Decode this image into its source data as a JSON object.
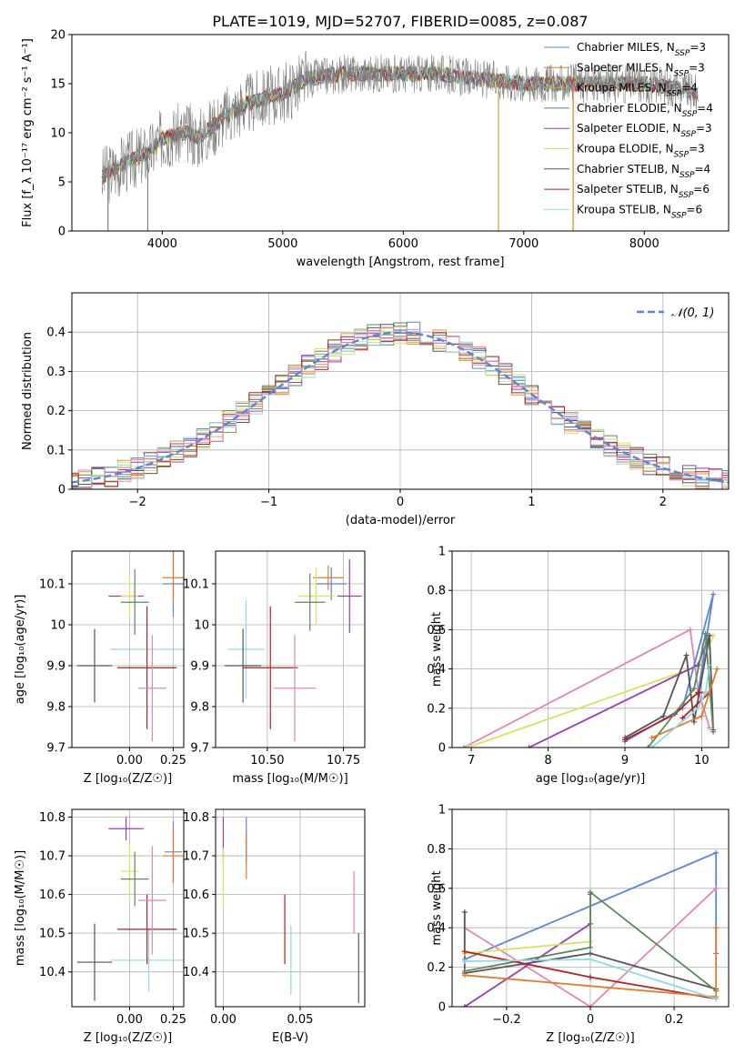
{
  "figure": {
    "title": "PLATE=1019, MJD=52707, FIBERID=0085, z=0.087"
  },
  "colors": {
    "Chabrier MILES": "#5B86D6",
    "Salpeter MILES": "#E07B2A",
    "Kroupa MILES": "#C9A13A",
    "Chabrier ELODIE": "#5A8A5A",
    "Salpeter ELODIE": "#9A3DB0",
    "Kroupa ELODIE": "#D7E35A",
    "Chabrier STELIB": "#555555",
    "Salpeter STELIB": "#B22222",
    "Kroupa STELIB": "#8FD9E6",
    "extra_pink": "#E088B8",
    "data": "#808080"
  },
  "chart_data": [
    {
      "id": "spectrum",
      "type": "line",
      "title": "PLATE=1019, MJD=52707, FIBERID=0085, z=0.087",
      "xlabel": "wavelength [Angstrom, rest frame]",
      "ylabel": "Flux [f_λ 10⁻¹⁷ erg cm⁻² s⁻¹ A⁻¹]",
      "xlim": [
        3250,
        8700
      ],
      "ylim": [
        0,
        20
      ],
      "xticks": [
        4000,
        5000,
        6000,
        7000,
        8000
      ],
      "yticks": [
        0,
        5,
        10,
        15,
        20
      ],
      "legend_position": "top-right",
      "legend": [
        "Chabrier MILES, N_SSP=3",
        "Salpeter MILES, N_SSP=3",
        "Kroupa MILES, N_SSP=4",
        "Chabrier ELODIE, N_SSP=4",
        "Salpeter ELODIE, N_SSP=3",
        "Kroupa ELODIE, N_SSP=3",
        "Chabrier STELIB, N_SSP=4",
        "Salpeter STELIB, N_SSP=6",
        "Kroupa STELIB, N_SSP=6"
      ],
      "data_continuum": [
        [
          3500,
          5.5
        ],
        [
          3700,
          7
        ],
        [
          3900,
          8
        ],
        [
          4000,
          9.5
        ],
        [
          4200,
          10
        ],
        [
          4300,
          9.5
        ],
        [
          4500,
          11.5
        ],
        [
          4700,
          13
        ],
        [
          5000,
          14
        ],
        [
          5200,
          15.5
        ],
        [
          5500,
          16
        ],
        [
          6000,
          16
        ],
        [
          6300,
          16
        ],
        [
          6600,
          15.5
        ],
        [
          7000,
          15
        ],
        [
          7300,
          15
        ],
        [
          7700,
          15
        ],
        [
          8000,
          15
        ],
        [
          8300,
          14.5
        ],
        [
          8450,
          14
        ]
      ],
      "spikes": [
        {
          "x": 3550,
          "y": 0
        },
        {
          "x": 3880,
          "y": 0
        },
        {
          "x": 6790,
          "y": 0
        },
        {
          "x": 7410,
          "y": 0
        }
      ]
    },
    {
      "id": "residuals",
      "type": "line",
      "xlabel": "(data-model)/error",
      "ylabel": "Normed distribution",
      "xlim": [
        -2.5,
        2.5
      ],
      "ylim": [
        0,
        0.5
      ],
      "xticks": [
        -2,
        -1,
        0,
        1,
        2
      ],
      "yticks": [
        0,
        0.1,
        0.2,
        0.3,
        0.4
      ],
      "legend": [
        "𝒩(0, 1)"
      ],
      "legend_position": "top-right",
      "grid": true
    },
    {
      "id": "age_vs_Z",
      "type": "scatter",
      "xlabel": "Z [log₁₀(Z/Z☉)]",
      "ylabel": "age  [log₁₀(age/yr)]",
      "xlim": [
        -0.33,
        0.31
      ],
      "ylim": [
        9.7,
        10.18
      ],
      "xticks": [
        0.0,
        0.25
      ],
      "xticklabels": [
        "0.00",
        "0.25"
      ],
      "yticks": [
        9.7,
        9.8,
        9.9,
        10.0,
        10.1
      ],
      "grid": true,
      "points": [
        {
          "model": "Chabrier MILES",
          "x": 0.25,
          "xerr": 0.06,
          "y": 10.1,
          "yerr": 0.08
        },
        {
          "model": "Salpeter MILES",
          "x": 0.25,
          "xerr": 0.06,
          "y": 10.115,
          "yerr": 0.06
        },
        {
          "model": "Salpeter ELODIE",
          "x": -0.02,
          "xerr": 0.1,
          "y": 10.07,
          "yerr": 0.0
        },
        {
          "model": "Kroupa ELODIE",
          "x": 0.0,
          "xerr": 0.05,
          "y": 10.07,
          "yerr": 0.05
        },
        {
          "model": "Chabrier ELODIE",
          "x": 0.03,
          "xerr": 0.08,
          "y": 10.055,
          "yerr": 0.08
        },
        {
          "model": "Kroupa STELIB",
          "x": 0.11,
          "xerr": 0.22,
          "y": 9.94,
          "yerr": 0.0
        },
        {
          "model": "Chabrier STELIB",
          "x": -0.2,
          "xerr": 0.1,
          "y": 9.9,
          "yerr": 0.09
        },
        {
          "model": "Salpeter STELIB",
          "x": 0.1,
          "xerr": 0.17,
          "y": 9.895,
          "yerr": 0.15
        },
        {
          "model": "extra_pink",
          "x": 0.13,
          "xerr": 0.08,
          "y": 9.845,
          "yerr": 0.13
        }
      ]
    },
    {
      "id": "age_vs_mass",
      "type": "scatter",
      "xlabel": "mass [log₁₀(M/M☉)]",
      "xlim": [
        10.33,
        10.82
      ],
      "ylim": [
        9.7,
        10.18
      ],
      "xticks": [
        10.5,
        10.75
      ],
      "xticklabels": [
        "10.50",
        "10.75"
      ],
      "yticks": [
        9.7,
        9.8,
        9.9,
        10.0,
        10.1
      ],
      "grid": true,
      "points": [
        {
          "model": "Chabrier MILES",
          "x": 10.71,
          "xerr": 0.05,
          "y": 10.1,
          "yerr": 0.04
        },
        {
          "model": "Salpeter MILES",
          "x": 10.7,
          "xerr": 0.05,
          "y": 10.115,
          "yerr": 0.03
        },
        {
          "model": "Salpeter ELODIE",
          "x": 10.77,
          "xerr": 0.04,
          "y": 10.07,
          "yerr": 0.09
        },
        {
          "model": "Kroupa ELODIE",
          "x": 10.66,
          "xerr": 0.06,
          "y": 10.07,
          "yerr": 0.07
        },
        {
          "model": "Chabrier ELODIE",
          "x": 10.64,
          "xerr": 0.05,
          "y": 10.055,
          "yerr": 0.07
        },
        {
          "model": "Kroupa STELIB",
          "x": 10.43,
          "xerr": 0.06,
          "y": 9.94,
          "yerr": 0.12
        },
        {
          "model": "Chabrier STELIB",
          "x": 10.42,
          "xerr": 0.06,
          "y": 9.9,
          "yerr": 0.09
        },
        {
          "model": "Salpeter STELIB",
          "x": 10.51,
          "xerr": 0.09,
          "y": 9.895,
          "yerr": 0.15
        },
        {
          "model": "extra_pink",
          "x": 10.59,
          "xerr": 0.07,
          "y": 9.845,
          "yerr": 0.13
        }
      ]
    },
    {
      "id": "mass_weight_vs_age",
      "type": "line",
      "xlabel": "age  [log₁₀(age/yr)]",
      "ylabel": "mass weight",
      "xlim": [
        6.75,
        10.35
      ],
      "ylim": [
        0,
        1.0
      ],
      "xticks": [
        7,
        8,
        9,
        10
      ],
      "yticks": [
        0,
        0.2,
        0.4,
        0.6,
        0.8,
        1.0
      ],
      "grid": true,
      "series": [
        {
          "model": "extra_pink",
          "points": [
            [
              6.9,
              0.0
            ],
            [
              9.85,
              0.6
            ],
            [
              9.95,
              0.3
            ],
            [
              10.1,
              0.1
            ]
          ]
        },
        {
          "model": "Kroupa ELODIE",
          "points": [
            [
              6.95,
              0.0
            ],
            [
              10.0,
              0.42
            ],
            [
              10.15,
              0.57
            ]
          ]
        },
        {
          "model": "Salpeter ELODIE",
          "points": [
            [
              7.75,
              0.0
            ],
            [
              9.95,
              0.42
            ],
            [
              10.1,
              0.57
            ]
          ]
        },
        {
          "model": "Chabrier MILES",
          "points": [
            [
              9.0,
              0.03
            ],
            [
              9.75,
              0.2
            ],
            [
              10.15,
              0.78
            ],
            [
              9.95,
              0.27
            ]
          ]
        },
        {
          "model": "Chabrier STELIB",
          "points": [
            [
              9.0,
              0.05
            ],
            [
              9.5,
              0.16
            ],
            [
              9.8,
              0.47
            ],
            [
              9.9,
              0.13
            ],
            [
              10.1,
              0.57
            ],
            [
              10.15,
              0.09
            ]
          ]
        },
        {
          "model": "Salpeter STELIB",
          "points": [
            [
              9.0,
              0.04
            ],
            [
              9.65,
              0.17
            ],
            [
              9.95,
              0.28
            ],
            [
              10.1,
              0.28
            ],
            [
              9.75,
              0.15
            ]
          ]
        },
        {
          "model": "Chabrier ELODIE",
          "points": [
            [
              9.3,
              0.0
            ],
            [
              9.9,
              0.3
            ],
            [
              10.05,
              0.58
            ],
            [
              10.15,
              0.08
            ]
          ]
        },
        {
          "model": "Salpeter MILES",
          "points": [
            [
              9.35,
              0.05
            ],
            [
              10.0,
              0.16
            ],
            [
              10.2,
              0.4
            ]
          ]
        },
        {
          "model": "Kroupa STELIB",
          "points": [
            [
              9.35,
              0.0
            ],
            [
              9.95,
              0.2
            ],
            [
              10.05,
              0.28
            ],
            [
              10.1,
              0.42
            ]
          ]
        }
      ]
    },
    {
      "id": "mass_vs_Z",
      "type": "scatter",
      "xlabel": "Z [log₁₀(Z/Z☉)]",
      "ylabel": "mass [log₁₀(M/M☉)]",
      "xlim": [
        -0.33,
        0.31
      ],
      "ylim": [
        10.31,
        10.82
      ],
      "xticks": [
        0.0,
        0.25
      ],
      "xticklabels": [
        "0.00",
        "0.25"
      ],
      "yticks": [
        10.4,
        10.5,
        10.6,
        10.7,
        10.8
      ],
      "grid": true,
      "points": [
        {
          "model": "Chabrier MILES",
          "x": 0.25,
          "xerr": 0.05,
          "y": 10.71,
          "yerr": 0.08
        },
        {
          "model": "Salpeter MILES",
          "x": 0.25,
          "xerr": 0.06,
          "y": 10.7,
          "yerr": 0.07
        },
        {
          "model": "Salpeter ELODIE",
          "x": -0.02,
          "xerr": 0.1,
          "y": 10.77,
          "yerr": 0.03
        },
        {
          "model": "Kroupa ELODIE",
          "x": 0.0,
          "xerr": 0.05,
          "y": 10.66,
          "yerr": 0.07
        },
        {
          "model": "Chabrier ELODIE",
          "x": 0.03,
          "xerr": 0.08,
          "y": 10.64,
          "yerr": 0.07
        },
        {
          "model": "Kroupa STELIB",
          "x": 0.11,
          "xerr": 0.22,
          "y": 10.43,
          "yerr": 0.08
        },
        {
          "model": "Chabrier STELIB",
          "x": -0.2,
          "xerr": 0.1,
          "y": 10.425,
          "yerr": 0.1
        },
        {
          "model": "Salpeter STELIB",
          "x": 0.1,
          "xerr": 0.17,
          "y": 10.51,
          "yerr": 0.09
        },
        {
          "model": "extra_pink",
          "x": 0.13,
          "xerr": 0.08,
          "y": 10.585,
          "yerr": 0.14
        }
      ]
    },
    {
      "id": "mass_vs_EBV",
      "type": "scatter",
      "xlabel": "E(B-V)",
      "xlim": [
        -0.005,
        0.092
      ],
      "ylim": [
        10.31,
        10.82
      ],
      "xticks": [
        0.0,
        0.05
      ],
      "xticklabels": [
        "0.00",
        "0.05"
      ],
      "yticks": [
        10.4,
        10.5,
        10.6,
        10.7,
        10.8
      ],
      "grid": true,
      "points": [
        {
          "model": "Chabrier MILES",
          "x": 0.015,
          "y": 10.74,
          "yerr": 0.06
        },
        {
          "model": "Salpeter MILES",
          "x": 0.015,
          "y": 10.7,
          "yerr": 0.06
        },
        {
          "model": "Salpeter ELODIE",
          "x": 0.0,
          "y": 10.74,
          "yerr": 0.06
        },
        {
          "model": "Kroupa ELODIE",
          "x": 0.0,
          "y": 10.64,
          "yerr": 0.08
        },
        {
          "model": "Kroupa STELIB",
          "x": 0.044,
          "y": 10.43,
          "yerr": 0.09
        },
        {
          "model": "Salpeter STELIB",
          "x": 0.04,
          "y": 10.51,
          "yerr": 0.09
        },
        {
          "model": "extra_pink",
          "x": 0.085,
          "y": 10.58,
          "yerr": 0.08
        },
        {
          "model": "Chabrier STELIB",
          "x": 0.088,
          "y": 10.41,
          "yerr": 0.09
        }
      ]
    },
    {
      "id": "mass_weight_vs_Z",
      "type": "line",
      "xlabel": "Z [log₁₀(Z/Z☉)]",
      "ylabel": "mass weight",
      "xlim": [
        -0.33,
        0.33
      ],
      "ylim": [
        0,
        1.0
      ],
      "xticks": [
        -0.2,
        0.0,
        0.2
      ],
      "yticks": [
        0,
        0.2,
        0.4,
        0.6,
        0.8,
        1.0
      ],
      "grid": true,
      "series": [
        {
          "model": "Chabrier MILES",
          "points": [
            [
              -0.3,
              0.24
            ],
            [
              0.3,
              0.78
            ],
            [
              0.3,
              0.27
            ]
          ]
        },
        {
          "model": "extra_pink",
          "points": [
            [
              -0.3,
              0.4
            ],
            [
              0.0,
              0.0
            ],
            [
              0.3,
              0.6
            ]
          ]
        },
        {
          "model": "Chabrier STELIB",
          "points": [
            [
              -0.3,
              0.48
            ],
            [
              -0.3,
              0.17
            ],
            [
              0.0,
              0.27
            ],
            [
              0.3,
              0.09
            ]
          ]
        },
        {
          "model": "Salpeter ELODIE",
          "points": [
            [
              -0.3,
              0.0
            ],
            [
              0.0,
              0.42
            ],
            [
              0.0,
              0.57
            ]
          ]
        },
        {
          "model": "Kroupa ELODIE",
          "points": [
            [
              -0.3,
              0.27
            ],
            [
              0.0,
              0.33
            ],
            [
              0.0,
              0.58
            ]
          ]
        },
        {
          "model": "Chabrier ELODIE",
          "points": [
            [
              -0.3,
              0.18
            ],
            [
              0.0,
              0.3
            ],
            [
              0.0,
              0.58
            ],
            [
              0.3,
              0.08
            ]
          ]
        },
        {
          "model": "Salpeter STELIB",
          "points": [
            [
              -0.3,
              0.28
            ],
            [
              0.0,
              0.15
            ],
            [
              0.3,
              0.04
            ]
          ]
        },
        {
          "model": "Salpeter MILES",
          "points": [
            [
              -0.3,
              0.16
            ],
            [
              0.3,
              0.05
            ],
            [
              0.3,
              0.4
            ]
          ]
        },
        {
          "model": "Kroupa STELIB",
          "points": [
            [
              -0.3,
              0.23
            ],
            [
              0.0,
              0.24
            ],
            [
              0.3,
              0.04
            ]
          ]
        }
      ]
    }
  ]
}
